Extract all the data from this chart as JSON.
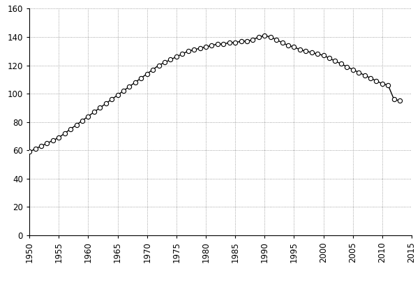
{
  "years": [
    1950,
    1951,
    1952,
    1953,
    1954,
    1955,
    1956,
    1957,
    1958,
    1959,
    1960,
    1961,
    1962,
    1963,
    1964,
    1965,
    1966,
    1967,
    1968,
    1969,
    1970,
    1971,
    1972,
    1973,
    1974,
    1975,
    1976,
    1977,
    1978,
    1979,
    1980,
    1981,
    1982,
    1983,
    1984,
    1985,
    1986,
    1987,
    1988,
    1989,
    1990,
    1991,
    1992,
    1993,
    1994,
    1995,
    1996,
    1997,
    1998,
    1999,
    2000,
    2001,
    2002,
    2003,
    2004,
    2005,
    2006,
    2007,
    2008,
    2009,
    2010,
    2011,
    2012,
    2013
  ],
  "values": [
    59,
    61,
    63,
    65,
    67,
    69,
    72,
    75,
    78,
    81,
    84,
    87,
    90,
    93,
    96,
    99,
    102,
    105,
    108,
    111,
    114,
    117,
    120,
    122,
    124,
    126,
    128,
    130,
    131,
    132,
    133,
    134,
    135,
    135,
    136,
    136,
    137,
    137,
    138,
    140,
    141,
    140,
    138,
    136,
    134,
    133,
    131,
    130,
    129,
    128,
    127,
    125,
    123,
    121,
    119,
    117,
    115,
    113,
    111,
    109,
    107,
    106,
    96,
    95
  ],
  "line_color": "#000000",
  "marker_color": "#ffffff",
  "marker_edge_color": "#000000",
  "background_color": "#ffffff",
  "grid_color": "#888888",
  "xlim": [
    1950,
    2015
  ],
  "ylim": [
    0,
    160
  ],
  "xticks": [
    1950,
    1955,
    1960,
    1965,
    1970,
    1975,
    1980,
    1985,
    1990,
    1995,
    2000,
    2005,
    2010,
    2015
  ],
  "yticks": [
    0,
    20,
    40,
    60,
    80,
    100,
    120,
    140,
    160
  ],
  "marker_size": 4.5,
  "line_width": 1.0,
  "tick_fontsize": 8.5
}
